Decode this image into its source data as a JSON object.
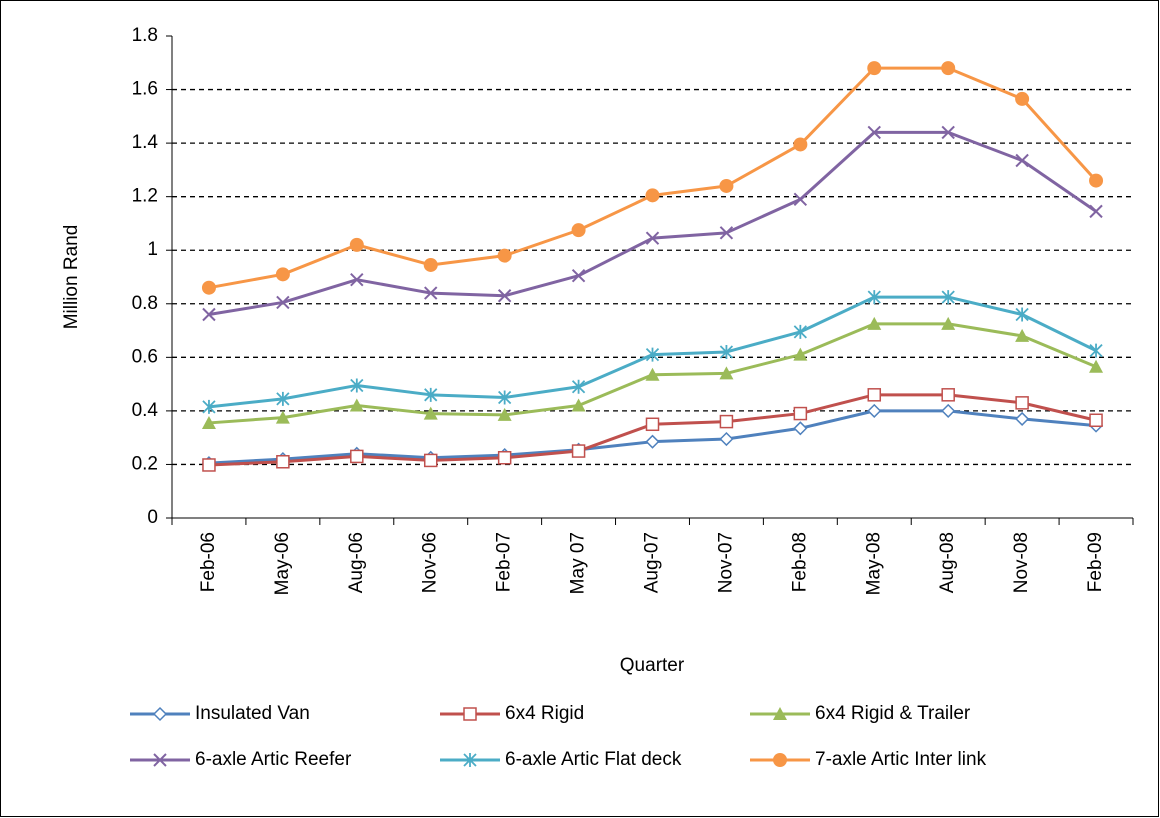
{
  "chart_data": {
    "type": "line",
    "x_label": "Quarter",
    "y_label": "Million Rand",
    "categories": [
      "Feb-06",
      "May-06",
      "Aug-06",
      "Nov-06",
      "Feb-07",
      "May 07",
      "Aug-07",
      "Nov-07",
      "Feb-08",
      "May-08",
      "Aug-08",
      "Nov-08",
      "Feb-09"
    ],
    "series": [
      {
        "name": "Insulated Van",
        "color": "#4f81bd",
        "marker": "diamond",
        "values": [
          0.205,
          0.22,
          0.24,
          0.225,
          0.235,
          0.255,
          0.285,
          0.295,
          0.335,
          0.4,
          0.4,
          0.37,
          0.345
        ]
      },
      {
        "name": "6x4 Rigid",
        "color": "#c0504d",
        "marker": "square",
        "values": [
          0.198,
          0.21,
          0.23,
          0.215,
          0.225,
          0.25,
          0.35,
          0.36,
          0.39,
          0.46,
          0.46,
          0.43,
          0.365
        ]
      },
      {
        "name": "6x4 Rigid & Trailer",
        "color": "#9bbb59",
        "marker": "triangle",
        "values": [
          0.355,
          0.375,
          0.42,
          0.39,
          0.385,
          0.42,
          0.535,
          0.54,
          0.61,
          0.725,
          0.725,
          0.68,
          0.565
        ]
      },
      {
        "name": "6-axle Artic Reefer",
        "color": "#8064a2",
        "marker": "x",
        "values": [
          0.76,
          0.805,
          0.89,
          0.84,
          0.83,
          0.905,
          1.045,
          1.065,
          1.19,
          1.44,
          1.44,
          1.335,
          1.145
        ]
      },
      {
        "name": "6-axle Artic Flat deck",
        "color": "#4bacc6",
        "marker": "star",
        "values": [
          0.415,
          0.445,
          0.495,
          0.46,
          0.45,
          0.49,
          0.61,
          0.62,
          0.695,
          0.825,
          0.825,
          0.76,
          0.625
        ]
      },
      {
        "name": "7-axle Artic Inter link",
        "color": "#f79646",
        "marker": "circle",
        "values": [
          0.86,
          0.91,
          1.02,
          0.945,
          0.98,
          1.075,
          1.205,
          1.24,
          1.395,
          1.68,
          1.68,
          1.565,
          1.26
        ]
      }
    ],
    "ylim": [
      0,
      1.8
    ],
    "yticks": [
      0,
      0.2,
      0.4,
      0.6,
      0.8,
      1,
      1.2,
      1.4,
      1.6,
      1.8
    ],
    "grid": true,
    "legend": "bottom"
  }
}
